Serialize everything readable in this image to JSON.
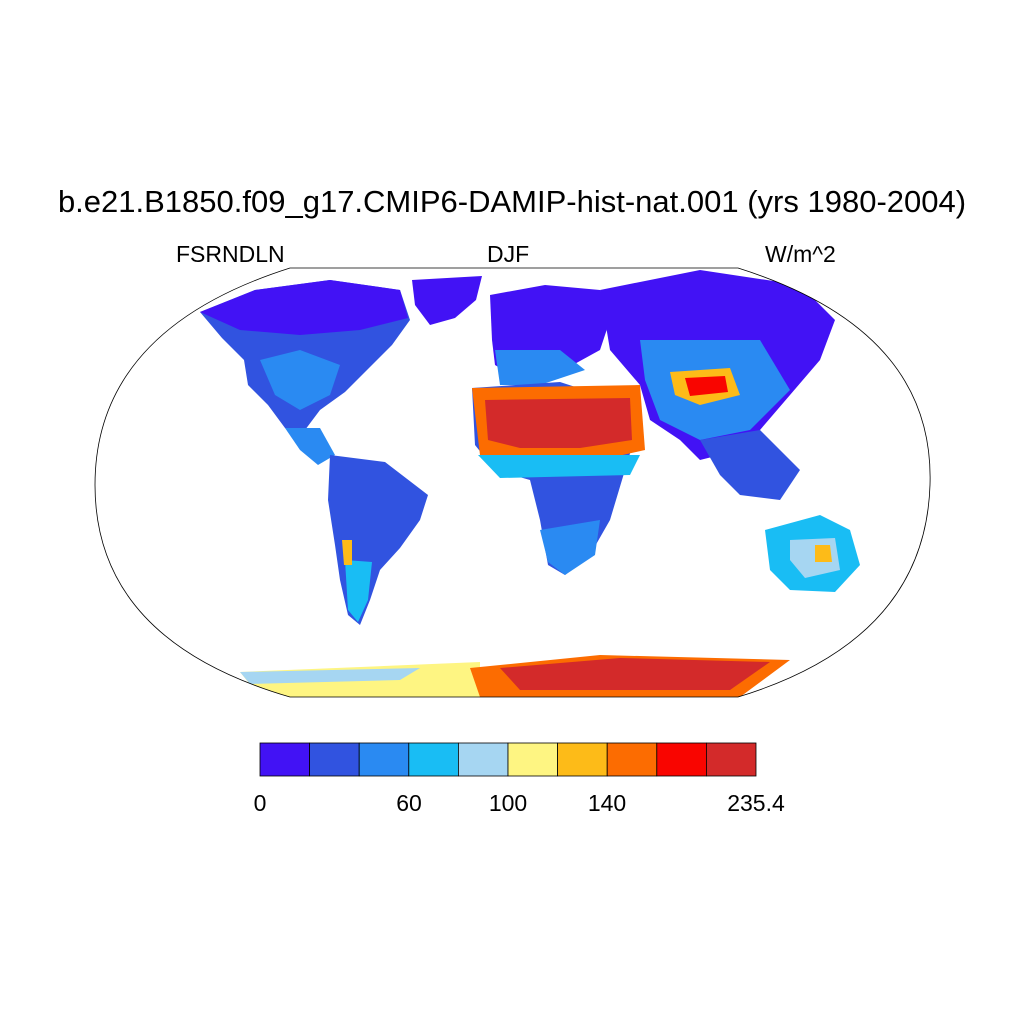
{
  "title": "b.e21.B1850.f09_g17.CMIP6-DAMIP-hist-nat.001 (yrs 1980-2004)",
  "left_string": "FSRNDLN",
  "center_string": "DJF",
  "right_string": "W/m^2",
  "colorbar": {
    "colors": [
      "#4212f5",
      "#3153e0",
      "#2a8af2",
      "#19bdf4",
      "#a6d6f2",
      "#fef582",
      "#fdbb18",
      "#fc6c01",
      "#f90500",
      "#d32a2a"
    ],
    "tick_labels": [
      "0",
      "60",
      "100",
      "140",
      "235.4"
    ]
  },
  "map": {
    "projection": "Robinson",
    "field": "FSRNDLN",
    "season": "DJF",
    "units": "W/m^2"
  }
}
